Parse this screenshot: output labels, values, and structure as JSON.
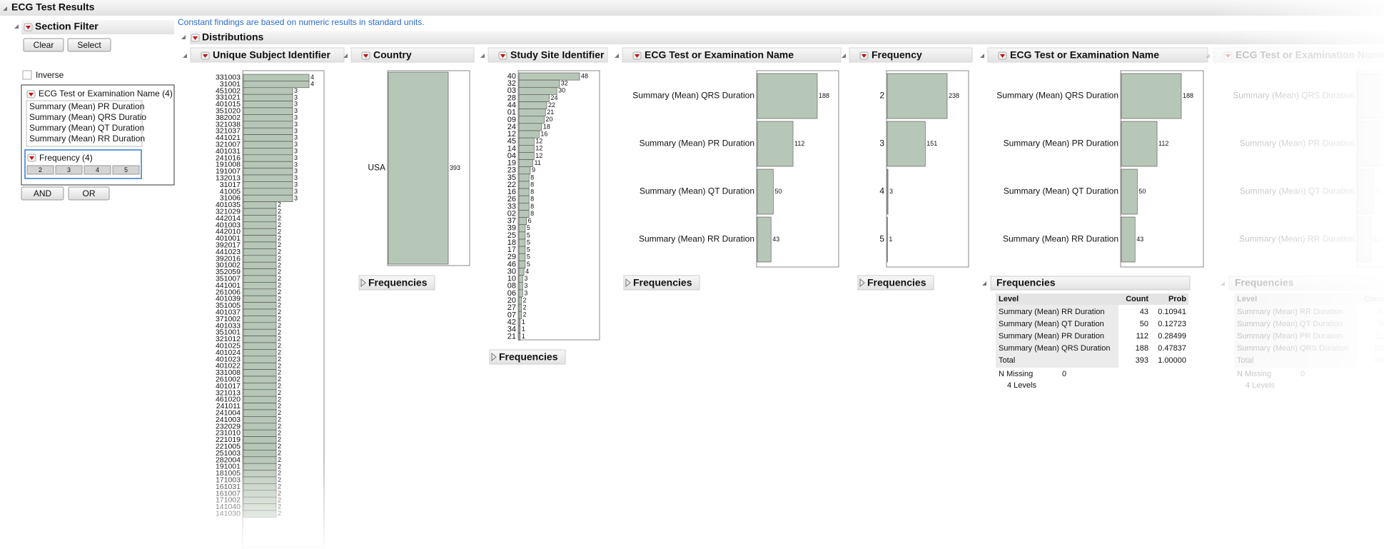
{
  "header": {
    "title": "ECG Test Results"
  },
  "note": "Constant findings are based on numeric results in standard units.",
  "filter": {
    "title": "Section Filter",
    "buttons": [
      "Clear",
      "Select"
    ],
    "inverse": "Inverse",
    "ecg_box": {
      "title": "ECG Test or Examination Name (4)",
      "items": [
        "Summary (Mean) PR Duration",
        "Summary (Mean) QRS Duratio",
        "Summary (Mean) QT Duration",
        "Summary (Mean) RR Duration"
      ]
    },
    "freq_box": {
      "title": "Frequency (4)",
      "items": [
        "2",
        "3",
        "4",
        "5"
      ]
    },
    "logic": [
      "AND",
      "OR"
    ]
  },
  "distributions": {
    "title": "Distributions",
    "report_label": "Frequencies",
    "panels": [
      {
        "title": "Unique Subject Identifier",
        "categories": [
          "331003",
          "31001",
          "451002",
          "331021",
          "401015",
          "351020",
          "382002",
          "321038",
          "321037",
          "441021",
          "321007",
          "401031",
          "241016",
          "191008",
          "191007",
          "132013",
          "31017",
          "41005",
          "31006",
          "401035",
          "321029",
          "442014",
          "401003",
          "442010",
          "401001",
          "392017",
          "441023",
          "392016",
          "301002",
          "352059",
          "351007",
          "441001",
          "261006",
          "401039",
          "351005",
          "401037",
          "371002",
          "401033",
          "351001",
          "321012",
          "401025",
          "401024",
          "401023",
          "401022",
          "331008",
          "261002",
          "401017",
          "321013",
          "461020",
          "241011",
          "241004",
          "241003",
          "232029",
          "231010",
          "221019",
          "221005",
          "251003",
          "282004",
          "191001",
          "181005",
          "171003",
          "161031",
          "161007",
          "171002",
          "141040",
          "141030"
        ],
        "values": [
          4,
          4,
          3,
          3,
          3,
          3,
          3,
          3,
          3,
          3,
          3,
          3,
          3,
          3,
          3,
          3,
          3,
          3,
          3,
          2,
          2,
          2,
          2,
          2,
          2,
          2,
          2,
          2,
          2,
          2,
          2,
          2,
          2,
          2,
          2,
          2,
          2,
          2,
          2,
          2,
          2,
          2,
          2,
          2,
          2,
          2,
          2,
          2,
          2,
          2,
          2,
          2,
          2,
          2,
          2,
          2,
          2,
          2,
          2,
          2,
          2,
          2,
          2,
          2,
          2,
          2
        ]
      },
      {
        "title": "Country",
        "categories": [
          "USA"
        ],
        "values": [
          393
        ]
      },
      {
        "title": "Study Site Identifier",
        "categories": [
          "40",
          "32",
          "03",
          "28",
          "44",
          "01",
          "09",
          "24",
          "12",
          "45",
          "14",
          "04",
          "19",
          "23",
          "35",
          "22",
          "16",
          "26",
          "33",
          "02",
          "37",
          "39",
          "25",
          "18",
          "17",
          "29",
          "46",
          "30",
          "10",
          "08",
          "06",
          "20",
          "27",
          "07",
          "42",
          "34",
          "21"
        ],
        "values": [
          48,
          32,
          30,
          24,
          22,
          21,
          20,
          18,
          16,
          12,
          12,
          12,
          11,
          9,
          8,
          8,
          8,
          8,
          8,
          8,
          6,
          5,
          5,
          5,
          5,
          5,
          5,
          4,
          3,
          3,
          3,
          2,
          2,
          2,
          1,
          1,
          1
        ]
      },
      {
        "title": "ECG Test or Examination Name",
        "categories": [
          "Summary (Mean) QRS Duration",
          "Summary (Mean) PR Duration",
          "Summary (Mean) QT Duration",
          "Summary (Mean) RR Duration"
        ],
        "values": [
          188,
          112,
          50,
          43
        ]
      },
      {
        "title": "Frequency",
        "categories": [
          "2",
          "3",
          "4",
          "5"
        ],
        "values": [
          238,
          151,
          3,
          1
        ]
      },
      {
        "title": "ECG Test or Examination Name",
        "categories": [
          "Summary (Mean) QRS Duration",
          "Summary (Mean) PR Duration",
          "Summary (Mean) QT Duration",
          "Summary (Mean) RR Duration"
        ],
        "values": [
          188,
          112,
          50,
          43
        ]
      }
    ],
    "table": {
      "title": "Frequencies",
      "columns": [
        "Level",
        "Count",
        "Prob"
      ],
      "rows": [
        [
          "Summary (Mean) RR Duration",
          "43",
          "0.10941"
        ],
        [
          "Summary (Mean) QT Duration",
          "50",
          "0.12723"
        ],
        [
          "Summary (Mean) PR Duration",
          "112",
          "0.28499"
        ],
        [
          "Summary (Mean) QRS Duration",
          "188",
          "0.47837"
        ],
        [
          "Total",
          "393",
          "1.00000"
        ]
      ],
      "missing_label": "N Missing",
      "missing": "0",
      "levels": "4 Levels"
    }
  }
}
